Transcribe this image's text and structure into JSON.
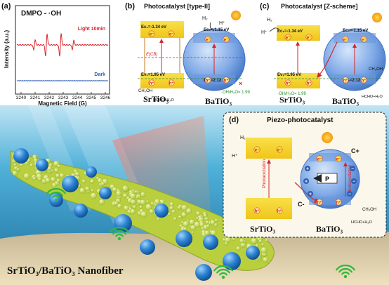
{
  "panel_a": {
    "label": "(a)",
    "title": "DMPO - ·OH",
    "ylabel": "Intensity (a.u.)",
    "xlabel": "Magnetic Field (G)",
    "xticks": [
      "3240",
      "3241",
      "3242",
      "3243",
      "3244",
      "3245",
      "3246"
    ],
    "series": [
      {
        "name": "Light 10min",
        "color": "#d8232a"
      },
      {
        "name": "Dark",
        "color": "#2f5fb3"
      }
    ]
  },
  "panel_b": {
    "label": "(b)",
    "title": "Photocatalyst [type-II]",
    "h2": "H₂",
    "hplus": "H⁺",
    "ec1": "Eᴄ₁=-1.34 eV",
    "ec2": "Eᴄ₂=-1.15 eV",
    "ev1": "Eᴠ₁=1.95 eV",
    "ev2": "Eᴠ₂=2.12 eV",
    "ecb": "E(CB)",
    "methanol": "CH₃OH",
    "product": "HCHO+H₂O",
    "oh_label": "·OH/H₂O= 1.99",
    "material1": "SrTiO₃",
    "material2": "BaTiO₃"
  },
  "panel_c": {
    "label": "(c)",
    "title": "Photocatalyst [Z-scheme]",
    "h2": "H₂",
    "hplus": "H⁺",
    "ec1": "Eᴄ₁=-1.34 eV",
    "ec2": "Eᴄ₂=-1.15 eV",
    "ev1": "Eᴠ₁=1.95 eV",
    "ev2": "Eᴠ₂=2.12 eV",
    "methanol": "CH₃OH",
    "product": "HCHO+H₂O",
    "oh_label": "·OH/H₂O= 1.99",
    "material1": "SrTiO₃",
    "material2": "BaTiO₃"
  },
  "panel_d": {
    "label": "(d)",
    "title": "Piezo-photocatalyst",
    "h2": "H₂",
    "hplus": "H⁺",
    "photoexcitation": "Photoexcitation",
    "cplus": "C+",
    "cminus": "C-",
    "p": "P",
    "methanol": "CH₃OH",
    "product": "HCHO+H₂O",
    "material1": "SrTiO₃",
    "material2": "BaTiO₃"
  },
  "scene": {
    "caption": "SrTiO₃/BaTiO₃ Nanofiber"
  },
  "carriers": {
    "electron": "e⁻",
    "hole": "h⁺",
    "plus": "+",
    "minus": "−"
  },
  "colors": {
    "band": "#f3d21c",
    "sphere": "#5a8fd8",
    "red": "#d8232a",
    "blue": "#2f5fb3",
    "water": "#2f8fc0",
    "sand": "#e6d3a8",
    "fiber": "#c9d84a"
  }
}
